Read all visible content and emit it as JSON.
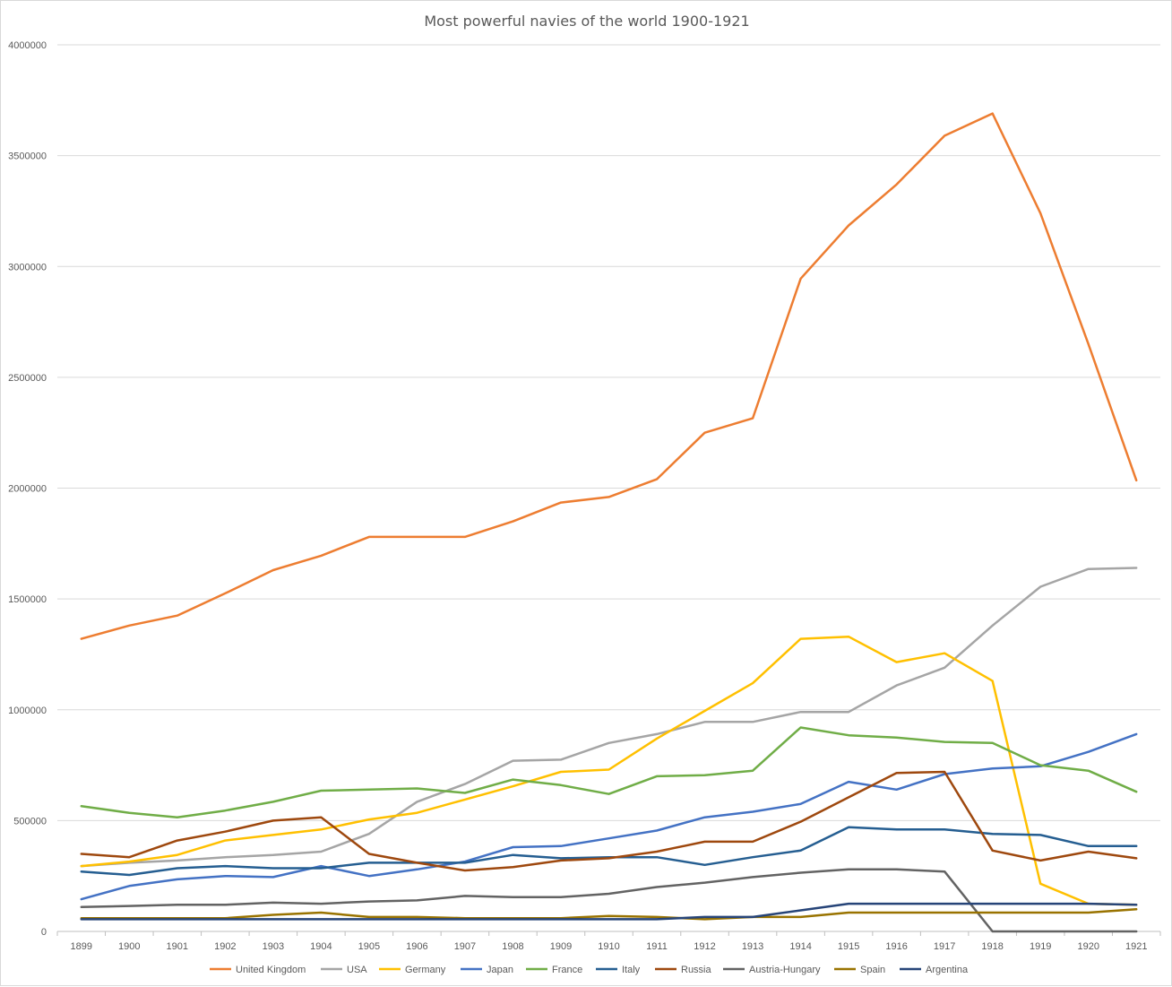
{
  "chart_data": {
    "type": "line",
    "title": "Most powerful navies of the world 1900-1921",
    "xlabel": "",
    "ylabel": "",
    "categories": [
      "1899",
      "1900",
      "1901",
      "1902",
      "1903",
      "1904",
      "1905",
      "1906",
      "1907",
      "1908",
      "1909",
      "1910",
      "1911",
      "1912",
      "1913",
      "1914",
      "1915",
      "1916",
      "1917",
      "1918",
      "1919",
      "1920",
      "1921"
    ],
    "ylim": [
      0,
      4000000
    ],
    "yticks": [
      "0",
      "500000",
      "1000000",
      "1500000",
      "2000000",
      "2500000",
      "3000000",
      "3500000",
      "4000000"
    ],
    "grid": true,
    "legend_position": "bottom",
    "series": [
      {
        "name": "United Kingdom",
        "color": "#ED7D31",
        "values": [
          1320000,
          1380000,
          1425000,
          1525000,
          1630000,
          1695000,
          1780000,
          1780000,
          1780000,
          1850000,
          1935000,
          1960000,
          2040000,
          2250000,
          2315000,
          2945000,
          3185000,
          3370000,
          3590000,
          3690000,
          3240000,
          2650000,
          2035000
        ]
      },
      {
        "name": "USA",
        "color": "#A5A5A5",
        "values": [
          295000,
          310000,
          320000,
          335000,
          345000,
          360000,
          440000,
          585000,
          665000,
          770000,
          775000,
          850000,
          890000,
          945000,
          945000,
          990000,
          990000,
          1110000,
          1190000,
          1380000,
          1555000,
          1635000,
          1640000
        ]
      },
      {
        "name": "Germany",
        "color": "#FFC000",
        "values": [
          295000,
          315000,
          345000,
          410000,
          435000,
          460000,
          505000,
          535000,
          595000,
          655000,
          720000,
          730000,
          870000,
          995000,
          1120000,
          1320000,
          1330000,
          1215000,
          1255000,
          1130000,
          215000,
          125000,
          120000
        ]
      },
      {
        "name": "Japan",
        "color": "#4472C4",
        "values": [
          145000,
          205000,
          235000,
          250000,
          245000,
          295000,
          250000,
          280000,
          315000,
          380000,
          385000,
          420000,
          455000,
          515000,
          540000,
          575000,
          675000,
          640000,
          710000,
          735000,
          745000,
          810000,
          890000
        ]
      },
      {
        "name": "France",
        "color": "#70AD47",
        "values": [
          565000,
          535000,
          515000,
          545000,
          585000,
          635000,
          640000,
          645000,
          625000,
          685000,
          660000,
          620000,
          700000,
          705000,
          725000,
          920000,
          885000,
          875000,
          855000,
          850000,
          750000,
          725000,
          630000
        ]
      },
      {
        "name": "Italy",
        "color": "#255E91",
        "values": [
          270000,
          255000,
          285000,
          295000,
          285000,
          285000,
          310000,
          310000,
          310000,
          345000,
          330000,
          335000,
          335000,
          300000,
          335000,
          365000,
          470000,
          460000,
          460000,
          440000,
          435000,
          385000,
          385000
        ]
      },
      {
        "name": "Russia",
        "color": "#9E480E",
        "values": [
          350000,
          335000,
          410000,
          450000,
          500000,
          515000,
          350000,
          310000,
          275000,
          290000,
          320000,
          330000,
          360000,
          405000,
          405000,
          495000,
          605000,
          715000,
          720000,
          365000,
          320000,
          360000,
          330000
        ]
      },
      {
        "name": "Austria-Hungary",
        "color": "#636363",
        "values": [
          110000,
          115000,
          120000,
          120000,
          130000,
          125000,
          135000,
          140000,
          160000,
          155000,
          155000,
          170000,
          200000,
          220000,
          245000,
          265000,
          280000,
          280000,
          270000,
          0,
          0,
          0,
          0
        ]
      },
      {
        "name": "Spain",
        "color": "#997300",
        "values": [
          60000,
          60000,
          60000,
          60000,
          75000,
          85000,
          65000,
          65000,
          60000,
          60000,
          60000,
          70000,
          65000,
          55000,
          65000,
          65000,
          85000,
          85000,
          85000,
          85000,
          85000,
          85000,
          100000
        ]
      },
      {
        "name": "Argentina",
        "color": "#264478",
        "values": [
          55000,
          55000,
          55000,
          55000,
          55000,
          55000,
          55000,
          55000,
          55000,
          55000,
          55000,
          55000,
          55000,
          65000,
          65000,
          95000,
          125000,
          125000,
          125000,
          125000,
          125000,
          125000,
          120000
        ]
      }
    ]
  }
}
